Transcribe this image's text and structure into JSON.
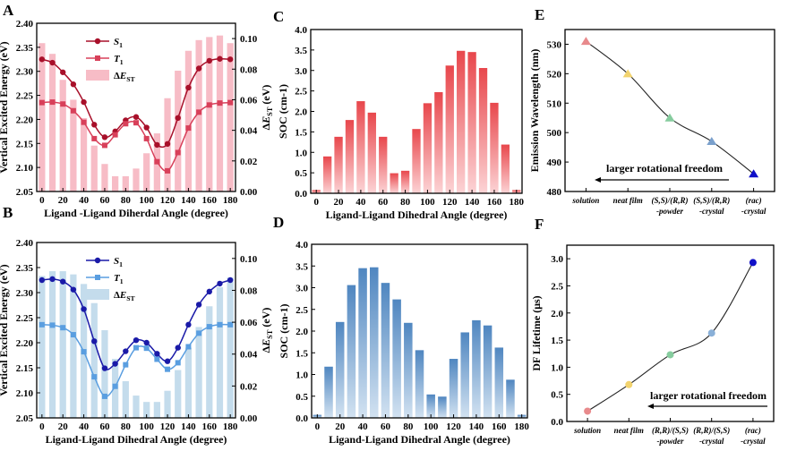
{
  "chart_data": [
    {
      "panel": "A",
      "type": "line+bar",
      "x": [
        0,
        10,
        20,
        30,
        40,
        50,
        60,
        70,
        80,
        90,
        100,
        110,
        120,
        130,
        140,
        150,
        160,
        170,
        180
      ],
      "xlabel": "Ligand -Ligand Diherdal Angle (degree)",
      "ylabel": "Vertical Excited Energy (eV)",
      "y2label": "ΔEST (eV)",
      "xlim": [
        -5,
        185
      ],
      "ylim": [
        2.05,
        2.4
      ],
      "y2lim": [
        0,
        0.11
      ],
      "xticks": [
        0,
        20,
        40,
        60,
        80,
        100,
        120,
        140,
        160,
        180
      ],
      "yticks": [
        2.05,
        2.1,
        2.15,
        2.2,
        2.25,
        2.3,
        2.35,
        2.4
      ],
      "y2ticks": [
        0,
        0.02,
        0.04,
        0.06,
        0.08,
        0.1
      ],
      "legend": [
        "S1",
        "T1",
        "ΔEST"
      ],
      "legend_position": "top-left",
      "series": [
        {
          "name": "S1",
          "axis": "left",
          "kind": "line",
          "marker": "circle",
          "color": "#a8102a",
          "values": [
            2.325,
            2.318,
            2.298,
            2.273,
            2.236,
            2.189,
            2.163,
            2.175,
            2.198,
            2.205,
            2.183,
            2.147,
            2.149,
            2.203,
            2.266,
            2.306,
            2.322,
            2.326,
            2.325
          ]
        },
        {
          "name": "T1",
          "axis": "left",
          "kind": "line",
          "marker": "square",
          "color": "#d8405a",
          "values": [
            2.235,
            2.236,
            2.232,
            2.218,
            2.194,
            2.16,
            2.146,
            2.168,
            2.191,
            2.193,
            2.16,
            2.112,
            2.093,
            2.131,
            2.182,
            2.215,
            2.23,
            2.234,
            2.235
          ]
        },
        {
          "name": "ΔEST",
          "axis": "right",
          "kind": "bar",
          "color": "#f7bcc6",
          "values": [
            0.097,
            0.09,
            0.073,
            0.06,
            0.048,
            0.03,
            0.018,
            0.01,
            0.01,
            0.015,
            0.025,
            0.038,
            0.061,
            0.079,
            0.092,
            0.099,
            0.101,
            0.102,
            0.097
          ]
        }
      ]
    },
    {
      "panel": "B",
      "type": "line+bar",
      "x": [
        0,
        10,
        20,
        30,
        40,
        50,
        60,
        70,
        80,
        90,
        100,
        110,
        120,
        130,
        140,
        150,
        160,
        170,
        180
      ],
      "xlabel": "Ligand-Ligand Dihedral Angle (degree)",
      "ylabel": "Vertical Excited Energy (eV)",
      "y2label": "ΔEST (eV)",
      "xlim": [
        -5,
        185
      ],
      "ylim": [
        2.05,
        2.4
      ],
      "y2lim": [
        0,
        0.11
      ],
      "xticks": [
        0,
        20,
        40,
        60,
        80,
        100,
        120,
        140,
        160,
        180
      ],
      "yticks": [
        2.05,
        2.1,
        2.15,
        2.2,
        2.25,
        2.3,
        2.35,
        2.4
      ],
      "y2ticks": [
        0,
        0.02,
        0.04,
        0.06,
        0.08,
        0.1
      ],
      "legend": [
        "S1",
        "T1",
        "ΔEST"
      ],
      "legend_position": "top-left",
      "series": [
        {
          "name": "S1",
          "axis": "left",
          "kind": "line",
          "marker": "circle",
          "color": "#1a1aa8",
          "values": [
            2.325,
            2.327,
            2.322,
            2.306,
            2.267,
            2.203,
            2.149,
            2.158,
            2.183,
            2.205,
            2.2,
            2.178,
            2.163,
            2.19,
            2.236,
            2.276,
            2.302,
            2.318,
            2.325
          ]
        },
        {
          "name": "T1",
          "axis": "left",
          "kind": "line",
          "marker": "square",
          "color": "#5a9ee0",
          "values": [
            2.236,
            2.235,
            2.23,
            2.216,
            2.182,
            2.132,
            2.093,
            2.113,
            2.156,
            2.19,
            2.189,
            2.167,
            2.147,
            2.16,
            2.192,
            2.219,
            2.232,
            2.236,
            2.236
          ]
        },
        {
          "name": "ΔEST",
          "axis": "right",
          "kind": "bar",
          "color": "#c4dcec",
          "values": [
            0.089,
            0.092,
            0.092,
            0.09,
            0.084,
            0.072,
            0.055,
            0.037,
            0.023,
            0.014,
            0.01,
            0.01,
            0.017,
            0.03,
            0.044,
            0.057,
            0.07,
            0.082,
            0.088
          ]
        }
      ]
    },
    {
      "panel": "C",
      "type": "bar",
      "x": [
        0,
        10,
        20,
        30,
        40,
        50,
        60,
        70,
        80,
        90,
        100,
        110,
        120,
        130,
        140,
        150,
        160,
        170,
        180
      ],
      "xlabel": "Ligand-Ligand Dihedral Angle (degree)",
      "ylabel": "SOC (cm-1)",
      "xlim": [
        -5,
        185
      ],
      "ylim": [
        0,
        4.0
      ],
      "xticks": [
        0,
        20,
        40,
        60,
        80,
        100,
        120,
        140,
        160,
        180
      ],
      "yticks": [
        0,
        0.5,
        1.0,
        1.5,
        2.0,
        2.5,
        3.0,
        3.5,
        4.0
      ],
      "color_top": "#e8474c",
      "color_bottom": "#fcd3d5",
      "values": [
        0.08,
        0.9,
        1.38,
        1.79,
        2.25,
        1.97,
        1.38,
        0.49,
        0.55,
        1.57,
        2.2,
        2.47,
        3.12,
        3.48,
        3.45,
        3.06,
        2.21,
        1.19,
        0.08
      ]
    },
    {
      "panel": "D",
      "type": "bar",
      "x": [
        0,
        10,
        20,
        30,
        40,
        50,
        60,
        70,
        80,
        90,
        100,
        110,
        120,
        130,
        140,
        150,
        160,
        170,
        180
      ],
      "xlabel": "Ligand-Ligand Dihedral Angle (degree)",
      "ylabel": "SOC (cm-1)",
      "xlim": [
        -5,
        185
      ],
      "ylim": [
        0,
        4.0
      ],
      "xticks": [
        0,
        20,
        40,
        60,
        80,
        100,
        120,
        140,
        160,
        180
      ],
      "yticks": [
        0,
        0.5,
        1.0,
        1.5,
        2.0,
        2.5,
        3.0,
        3.5,
        4.0
      ],
      "color_top": "#4f86c0",
      "color_bottom": "#d2e2f1",
      "values": [
        0.07,
        1.18,
        2.21,
        3.06,
        3.45,
        3.47,
        3.11,
        2.73,
        2.19,
        1.56,
        0.54,
        0.49,
        1.36,
        1.97,
        2.25,
        2.13,
        1.62,
        0.88,
        0.07
      ]
    },
    {
      "panel": "E",
      "type": "line",
      "marker": "triangle",
      "ylabel": "Emission Wavelength (nm)",
      "ylim": [
        480,
        535
      ],
      "yticks": [
        480,
        490,
        500,
        510,
        520,
        530
      ],
      "categories": [
        [
          "solution"
        ],
        [
          "neat film"
        ],
        [
          "(S,S)/(R,R)",
          "-powder"
        ],
        [
          "(S,S)/(R,R)",
          "-crystal"
        ],
        [
          "(rac)",
          "-crystal"
        ]
      ],
      "values": [
        531,
        520,
        505,
        497,
        486
      ],
      "colors": [
        "#e88a8c",
        "#f2d36e",
        "#86cc9e",
        "#7aa0cc",
        "#1010c8"
      ],
      "annotation": "larger rotational freedom"
    },
    {
      "panel": "F",
      "type": "line",
      "marker": "circle",
      "ylabel": "DF Lifetime (μs)",
      "ylim": [
        0,
        3.25
      ],
      "yticks": [
        0.0,
        0.5,
        1.0,
        1.5,
        2.0,
        2.5,
        3.0
      ],
      "categories": [
        [
          "solution"
        ],
        [
          "neat film"
        ],
        [
          "(R,R)/(S,S)",
          "-powder"
        ],
        [
          "(R,R)/(S,S)",
          "-crystal"
        ],
        [
          "(rac)",
          "-crystal"
        ]
      ],
      "values": [
        0.19,
        0.68,
        1.23,
        1.63,
        2.93
      ],
      "colors": [
        "#e88a8c",
        "#f2d36e",
        "#86cc9e",
        "#8ab0d8",
        "#1010c8"
      ],
      "annotation": "larger rotational freedom"
    }
  ]
}
